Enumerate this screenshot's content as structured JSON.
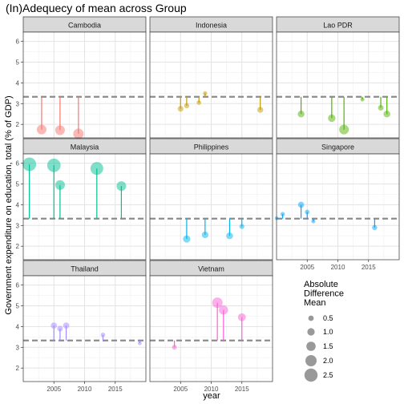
{
  "chart_data": {
    "type": "scatter",
    "title": "(In)Adequecy of mean across Group",
    "xlabel": "year",
    "ylabel": "Government expenditure on education, total (% of GDP)",
    "mean_line": 3.33,
    "xlim": [
      2000,
      2020
    ],
    "ylim": [
      1.35,
      6.45
    ],
    "x_ticks": [
      2005,
      2010,
      2015
    ],
    "y_ticks": [
      2,
      3,
      4,
      5,
      6
    ],
    "x_tick_labels": [
      "2005",
      "2010",
      "2015"
    ],
    "y_tick_labels": [
      "2",
      "3",
      "4",
      "5",
      "6"
    ],
    "grid": true,
    "legend": {
      "position": "right-bottom",
      "title_lines": [
        "Absolute",
        "Difference",
        "Mean"
      ],
      "sizes": [
        0.5,
        1.0,
        1.5,
        2.0,
        2.5
      ],
      "labels": [
        "0.5",
        "1.0",
        "1.5",
        "2.0",
        "2.5"
      ]
    },
    "panels": [
      {
        "name": "Cambodia",
        "color": "#F8766D",
        "points": [
          {
            "x": 2003,
            "y": 1.75
          },
          {
            "x": 2006,
            "y": 1.72
          },
          {
            "x": 2009,
            "y": 1.55
          }
        ]
      },
      {
        "name": "Indonesia",
        "color": "#C49A00",
        "points": [
          {
            "x": 2005,
            "y": 2.75
          },
          {
            "x": 2006,
            "y": 2.9
          },
          {
            "x": 2008,
            "y": 3.05
          },
          {
            "x": 2009,
            "y": 3.5
          },
          {
            "x": 2018,
            "y": 2.7
          }
        ]
      },
      {
        "name": "Lao PDR",
        "color": "#53B400",
        "points": [
          {
            "x": 2004,
            "y": 2.5
          },
          {
            "x": 2009,
            "y": 2.3
          },
          {
            "x": 2011,
            "y": 1.75
          },
          {
            "x": 2014,
            "y": 3.2
          },
          {
            "x": 2017,
            "y": 2.8
          },
          {
            "x": 2018,
            "y": 2.5
          }
        ]
      },
      {
        "name": "Malaysia",
        "color": "#00C094",
        "points": [
          {
            "x": 2001,
            "y": 5.95
          },
          {
            "x": 2005,
            "y": 5.9
          },
          {
            "x": 2006,
            "y": 4.95
          },
          {
            "x": 2012,
            "y": 5.75
          },
          {
            "x": 2016,
            "y": 4.9
          }
        ]
      },
      {
        "name": "Philippines",
        "color": "#00B6EB",
        "points": [
          {
            "x": 2006,
            "y": 2.35
          },
          {
            "x": 2009,
            "y": 2.55
          },
          {
            "x": 2013,
            "y": 2.5
          },
          {
            "x": 2015,
            "y": 2.95
          }
        ]
      },
      {
        "name": "Singapore",
        "color": "#06A4FF",
        "points": [
          {
            "x": 2000,
            "y": 3.35
          },
          {
            "x": 2001,
            "y": 3.55
          },
          {
            "x": 2004,
            "y": 4.0
          },
          {
            "x": 2005,
            "y": 3.65
          },
          {
            "x": 2006,
            "y": 3.2
          },
          {
            "x": 2016,
            "y": 2.9
          }
        ]
      },
      {
        "name": "Thailand",
        "color": "#A58AFF",
        "points": [
          {
            "x": 2005,
            "y": 4.05
          },
          {
            "x": 2006,
            "y": 3.9
          },
          {
            "x": 2007,
            "y": 4.05
          },
          {
            "x": 2013,
            "y": 3.6
          },
          {
            "x": 2019,
            "y": 3.2
          }
        ]
      },
      {
        "name": "Vietnam",
        "color": "#FB61D7",
        "points": [
          {
            "x": 2004,
            "y": 3.0
          },
          {
            "x": 2011,
            "y": 5.15
          },
          {
            "x": 2012,
            "y": 4.8
          },
          {
            "x": 2015,
            "y": 4.45
          }
        ]
      }
    ]
  }
}
